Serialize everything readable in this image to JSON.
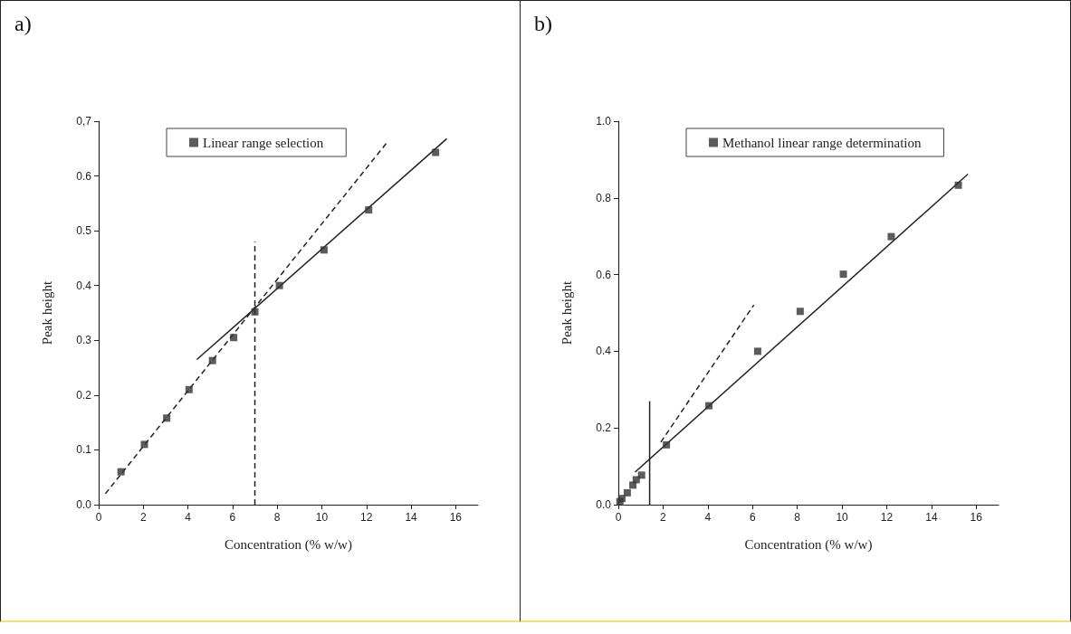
{
  "chart_data": [
    {
      "type": "scatter",
      "title": "a)",
      "xlabel": "Concentration (% w/w)",
      "ylabel": "Peak height",
      "xlim": [
        0,
        17
      ],
      "xticks": [
        0,
        2,
        4,
        6,
        8,
        10,
        12,
        14,
        16
      ],
      "ylim": [
        0,
        0.7
      ],
      "yticks": [
        {
          "value": 0,
          "label": "0.0"
        },
        0.1,
        0.2,
        0.3,
        0.4,
        0.5,
        0.6,
        {
          "value": 0.7,
          "label": "0,7"
        }
      ],
      "grid": false,
      "legend": "top",
      "marker": "square",
      "series": [
        {
          "name": "Linear range selection",
          "color": "#333333",
          "x": [
            1,
            2.05,
            3.05,
            4.05,
            5.1,
            6.05,
            7,
            8.1,
            10.1,
            12.1,
            15.1
          ],
          "values": [
            0.06,
            0.11,
            0.158,
            0.21,
            0.263,
            0.305,
            0.352,
            0.4,
            0.465,
            0.538,
            0.643
          ]
        },
        {
          "type": "line",
          "color": "#222222",
          "marker": "none",
          "line_style": "dashed",
          "x": [
            0.3,
            12.9
          ],
          "values": [
            0.02,
            0.66
          ]
        },
        {
          "type": "line",
          "color": "#222222",
          "marker": "none",
          "line_style": "solid",
          "x": [
            4.4,
            15.6
          ],
          "values": [
            0.265,
            0.668
          ]
        },
        {
          "type": "line",
          "color": "#222222",
          "marker": "none",
          "line_style": "dashed",
          "x": [
            7,
            7
          ],
          "values": [
            0,
            0.48
          ]
        }
      ]
    },
    {
      "type": "scatter",
      "title": "b)",
      "xlabel": "Concentration (% w/w)",
      "ylabel": "Peak height",
      "xlim": [
        0,
        17
      ],
      "xticks": [
        0,
        2,
        4,
        6,
        8,
        10,
        12,
        14,
        16
      ],
      "ylim": [
        0,
        1
      ],
      "yticks": [
        {
          "value": 0,
          "label": "0.0"
        },
        0.2,
        0.4,
        0.6,
        0.8,
        {
          "value": 1,
          "label": "1.0"
        }
      ],
      "grid": false,
      "legend": "top",
      "marker": "square",
      "series": [
        {
          "name": "Methanol linear range determination",
          "color": "#333333",
          "x": [
            0.07,
            0.16,
            0.4,
            0.65,
            0.8,
            1.04,
            2.15,
            4.05,
            6.23,
            8.13,
            10.06,
            12.2,
            15.2
          ],
          "values": [
            0.008,
            0.016,
            0.031,
            0.051,
            0.065,
            0.077,
            0.156,
            0.258,
            0.4,
            0.504,
            0.601,
            0.699,
            0.833
          ]
        },
        {
          "type": "line",
          "color": "#222222",
          "marker": "none",
          "line_style": "dashed",
          "x": [
            1.9,
            6.06
          ],
          "values": [
            0.163,
            0.521
          ]
        },
        {
          "type": "line",
          "color": "#222222",
          "marker": "none",
          "line_style": "solid",
          "x": [
            0.75,
            15.63
          ],
          "values": [
            0.085,
            0.862
          ]
        },
        {
          "type": "line",
          "color": "#222222",
          "marker": "none",
          "line_style": "solid",
          "x": [
            1.4,
            1.4
          ],
          "values": [
            0,
            0.27
          ]
        }
      ]
    }
  ]
}
